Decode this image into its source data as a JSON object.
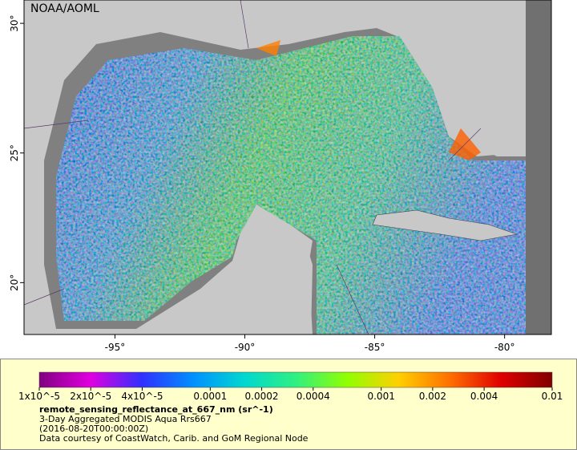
{
  "map": {
    "label": "NOAA/AOML",
    "xlim": [
      -98.5,
      -78.2
    ],
    "ylim": [
      18.0,
      30.9
    ],
    "lon_ticks": [
      {
        "value": -95,
        "label": "-95°"
      },
      {
        "value": -90,
        "label": "-90°"
      },
      {
        "value": -85,
        "label": "-85°"
      },
      {
        "value": -80,
        "label": "-80°"
      }
    ],
    "lat_ticks": [
      {
        "value": 20,
        "label": "20°"
      },
      {
        "value": 25,
        "label": "25°"
      },
      {
        "value": 30,
        "label": "30°"
      }
    ]
  },
  "legend": {
    "log": true,
    "clim": [
      1e-05,
      0.01
    ],
    "colors": [
      "#800080",
      "#e000e0",
      "#3030ff",
      "#0090ff",
      "#00d8d0",
      "#30f080",
      "#90ff00",
      "#ffd000",
      "#ff7000",
      "#e00000",
      "#800000"
    ],
    "ticks": [
      {
        "value": 1e-05,
        "label": "1x10^-5"
      },
      {
        "value": 2e-05,
        "label": "2x10^-5"
      },
      {
        "value": 4e-05,
        "label": "4x10^-5"
      },
      {
        "value": 0.0001,
        "label": "0.0001"
      },
      {
        "value": 0.0002,
        "label": "0.0002"
      },
      {
        "value": 0.0004,
        "label": "0.0004"
      },
      {
        "value": 0.001,
        "label": "0.001"
      },
      {
        "value": 0.002,
        "label": "0.002"
      },
      {
        "value": 0.004,
        "label": "0.004"
      },
      {
        "value": 0.01,
        "label": "0.01"
      }
    ],
    "variable": "remote_sensing_reflectance_at_667_nm (sr^-1)",
    "lines": [
      "3-Day Aggregated MODIS Aqua Rrs667",
      "(2016-08-20T00:00:00Z)",
      "Data courtesy of CoastWatch, Carib. and GoM Regional Node"
    ]
  }
}
